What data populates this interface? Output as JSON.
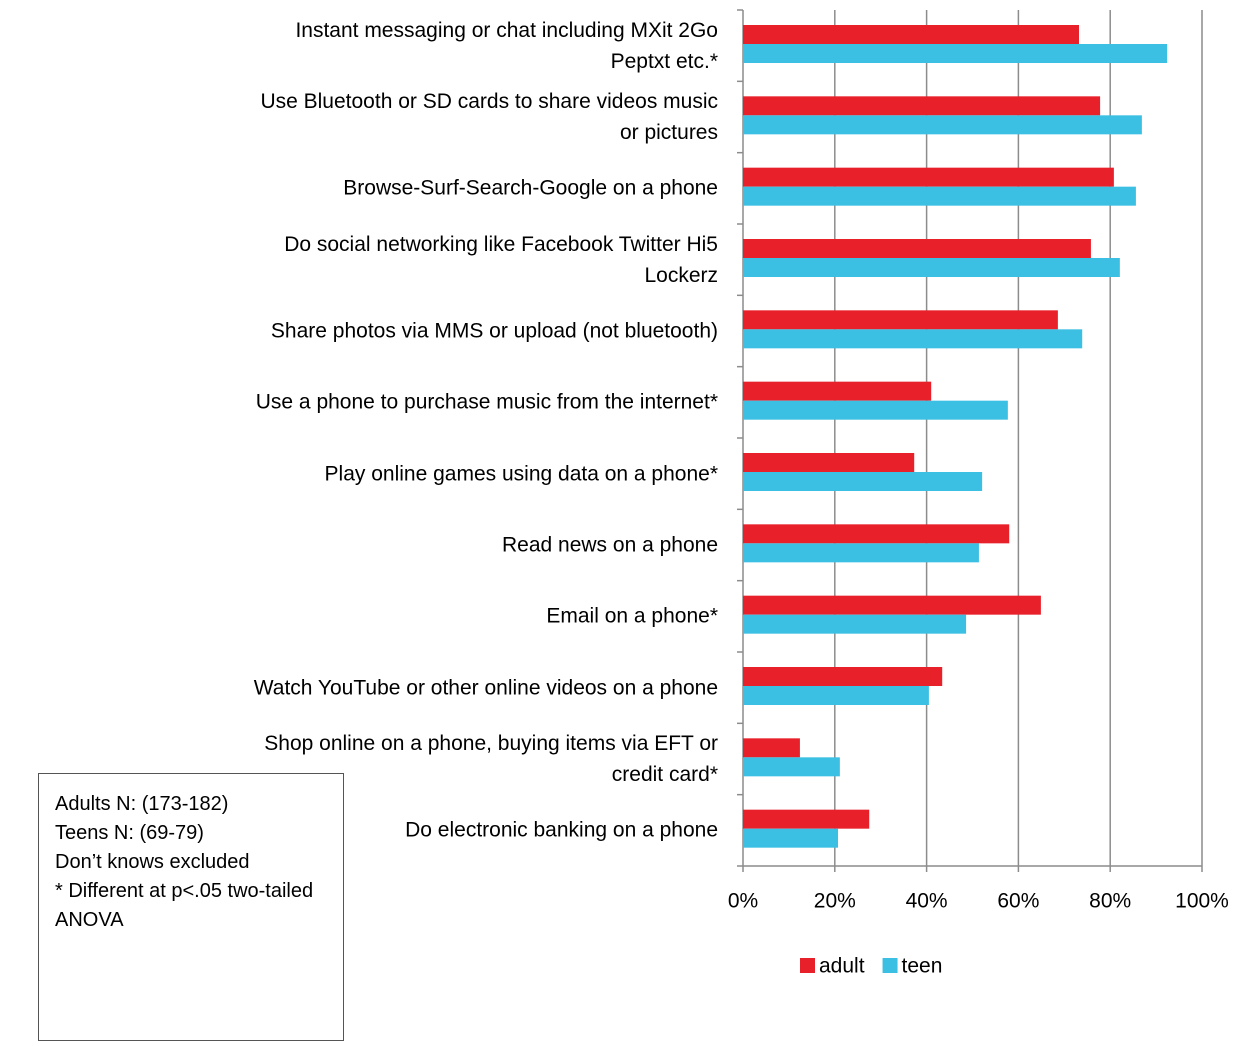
{
  "chart_data": {
    "type": "bar",
    "orientation": "horizontal",
    "categories": [
      "Instant messaging or chat including MXit 2Go Peptxt etc.*",
      "Use Bluetooth or SD cards to share videos music or pictures",
      "Browse-Surf-Search-Google on a phone",
      "Do social networking like Facebook Twitter Hi5 Lockerz",
      "Share photos via MMS or upload (not bluetooth)",
      "Use a phone to purchase music from the internet*",
      "Play online games using data on a phone*",
      "Read news on a phone",
      "Email on a phone*",
      "Watch YouTube or other online videos on a phone",
      "Shop online on a phone, buying items via EFT or credit card*",
      "Do electronic banking on a phone"
    ],
    "series": [
      {
        "name": "adult",
        "color": "#e8202a",
        "values": [
          73.2,
          77.8,
          80.8,
          75.8,
          68.6,
          41.0,
          37.3,
          58.0,
          64.9,
          43.4,
          12.4,
          27.5
        ]
      },
      {
        "name": "teen",
        "color": "#3bbfe3",
        "values": [
          92.4,
          86.9,
          85.6,
          82.1,
          73.9,
          57.7,
          52.1,
          51.4,
          48.6,
          40.5,
          21.1,
          20.7
        ]
      }
    ],
    "xlim": [
      0,
      100
    ],
    "xticks": [
      {
        "value": 0,
        "label": "0%"
      },
      {
        "value": 20,
        "label": "20%"
      },
      {
        "value": 40,
        "label": "40%"
      },
      {
        "value": 60,
        "label": "60%"
      },
      {
        "value": 80,
        "label": "80%"
      },
      {
        "value": 100,
        "label": "100%"
      }
    ],
    "grid": true,
    "legend": "bottom",
    "notes": [
      "Adults N: (173-182)",
      "Teens N: (69-79)",
      "Don’t knows excluded",
      "* Different at p<.05 two-tailed ANOVA"
    ]
  }
}
